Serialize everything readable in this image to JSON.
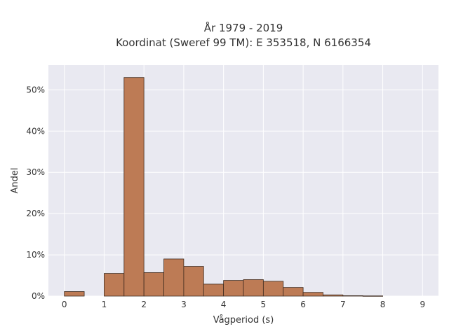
{
  "chart_data": {
    "type": "bar",
    "title": "År 1979 - 2019",
    "subtitle": "Koordinat (Sweref 99 TM): E 353518, N 6166354",
    "xlabel": "Vågperiod (s)",
    "ylabel": "Andel",
    "xlim": [
      -0.4,
      9.4
    ],
    "ylim": [
      0,
      56
    ],
    "x_ticks": [
      0,
      1,
      2,
      3,
      4,
      5,
      6,
      7,
      8,
      9
    ],
    "y_ticks": [
      0,
      10,
      20,
      30,
      40,
      50
    ],
    "y_tick_labels": [
      "0%",
      "10%",
      "20%",
      "30%",
      "40%",
      "50%"
    ],
    "bin_width": 0.5,
    "bins": [
      {
        "start": 0.0,
        "value": 1.1
      },
      {
        "start": 0.5,
        "value": 0.0
      },
      {
        "start": 1.0,
        "value": 5.5
      },
      {
        "start": 1.5,
        "value": 53.0
      },
      {
        "start": 2.0,
        "value": 5.7
      },
      {
        "start": 2.5,
        "value": 9.0
      },
      {
        "start": 3.0,
        "value": 7.2
      },
      {
        "start": 3.5,
        "value": 2.9
      },
      {
        "start": 4.0,
        "value": 3.8
      },
      {
        "start": 4.5,
        "value": 4.0
      },
      {
        "start": 5.0,
        "value": 3.6
      },
      {
        "start": 5.5,
        "value": 2.1
      },
      {
        "start": 6.0,
        "value": 0.9
      },
      {
        "start": 6.5,
        "value": 0.3
      },
      {
        "start": 7.0,
        "value": 0.1
      },
      {
        "start": 7.5,
        "value": 0.05
      }
    ],
    "grid": true,
    "bar_color": "#bd7b55",
    "bar_edge_color": "#3d2a1e",
    "plot_background": "#e9e9f1"
  }
}
